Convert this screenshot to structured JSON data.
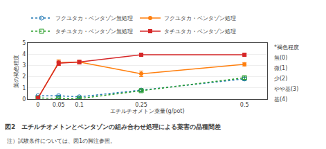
{
  "chart_data": {
    "type": "line",
    "title": "図2　エチルチオメトンとベンタゾンの組み合わせ処理による薬害の品種間差",
    "note": "注）試験条件については、図1の脚注参照。",
    "xlabel": "エチルチオメトン薬量(g/pot)",
    "ylabel": "葉の褐色程度",
    "annotations": [
      "*褐色程度",
      "無(0)",
      "微(1)",
      "少(2)",
      "やや基(3)",
      "基(4)"
    ],
    "x": [
      0,
      0.05,
      0.1,
      0.25,
      0.5
    ],
    "series": [
      {
        "name": "フクユタカ・ベンタゾン無処理",
        "values": [
          0.3,
          0.3,
          0.2,
          0.8,
          1.8
        ],
        "error": [
          0.0,
          0.05,
          0.05,
          0.1,
          0.15
        ],
        "marker": "circle-open",
        "line_style": "dotted"
      },
      {
        "name": "フクユタカ・ベンタゾン処理",
        "values": [
          0.1,
          3.25,
          3.3,
          2.25,
          3.1
        ],
        "error": [
          0.0,
          0.25,
          0.15,
          0.25,
          0.15
        ],
        "marker": "circle",
        "line_style": "solid"
      },
      {
        "name": "タチユタカ・ベンタゾン無処理",
        "values": [
          0.1,
          0.05,
          0.05,
          0.75,
          1.9
        ],
        "error": [
          0.0,
          0.05,
          0.05,
          0.1,
          0.15
        ],
        "marker": "square-open",
        "line_style": "dotted"
      },
      {
        "name": "タチユタカ・ベンタゾン処理",
        "values": [
          0.1,
          3.2,
          3.3,
          3.95,
          3.95
        ],
        "error": [
          0.0,
          0.2,
          0.15,
          0.1,
          0.1
        ],
        "marker": "square",
        "line_style": "solid"
      }
    ],
    "xlim": [
      -0.025,
      0.555
    ],
    "xticks": [
      0,
      0.05,
      0.1,
      0.25,
      0.5
    ],
    "ylim": [
      0,
      5
    ],
    "yticks": [
      0,
      1,
      2,
      3,
      4,
      5
    ],
    "grid": "y",
    "legend": "top"
  }
}
